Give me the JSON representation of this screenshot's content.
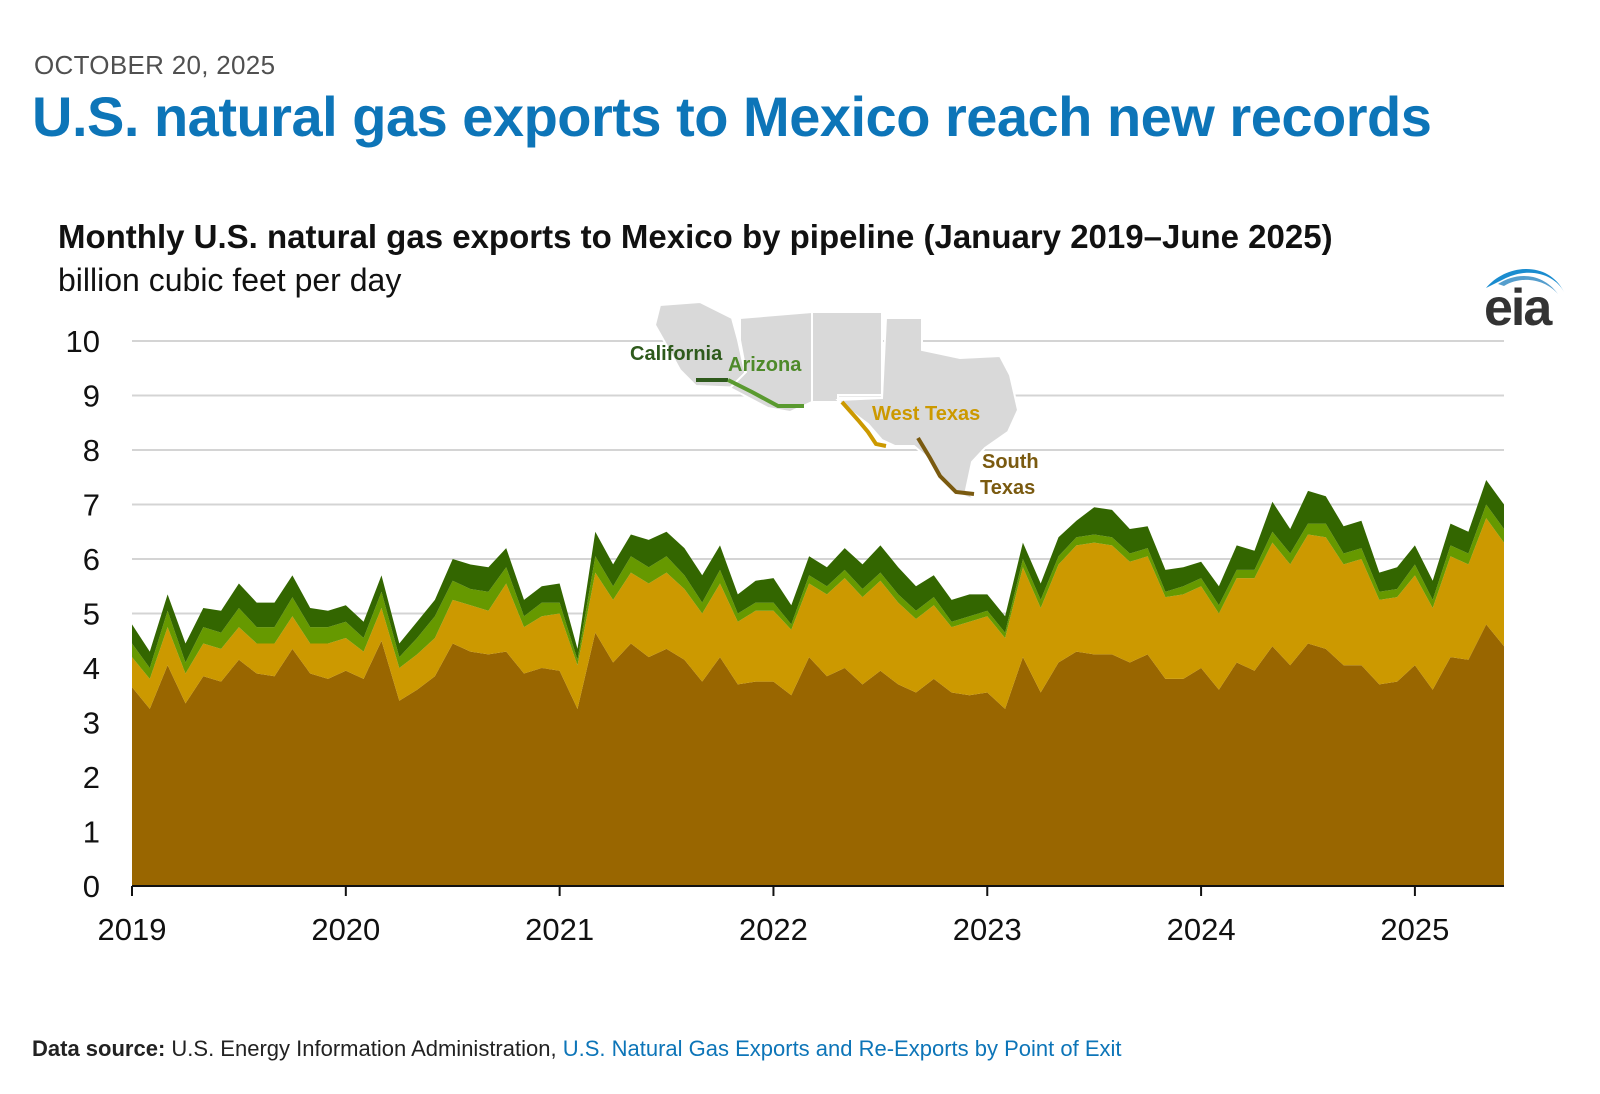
{
  "header": {
    "date": "OCTOBER 20, 2025",
    "title": "U.S. natural gas exports to Mexico reach new records"
  },
  "chart_data": {
    "type": "area",
    "stacked": true,
    "title": "Monthly U.S. natural gas exports to Mexico by pipeline (January 2019–June 2025)",
    "ylabel": "billion cubic feet per day",
    "ylim": [
      0,
      10
    ],
    "yticks": [
      "0",
      "1",
      "2",
      "3",
      "4",
      "5",
      "6",
      "7",
      "8",
      "9",
      "10"
    ],
    "xlim": [
      2019,
      2025.4167
    ],
    "xticks": [
      "2019",
      "2020",
      "2021",
      "2022",
      "2023",
      "2024",
      "2025"
    ],
    "x_start": "January 2019",
    "x_step": "monthly",
    "legend_placement": "inset map, top-center",
    "series": [
      {
        "name": "South Texas",
        "color": "#996600",
        "values": [
          3.65,
          3.25,
          4.05,
          3.35,
          3.85,
          3.75,
          4.15,
          3.9,
          3.85,
          4.35,
          3.9,
          3.8,
          3.95,
          3.8,
          4.5,
          3.4,
          3.6,
          3.85,
          4.45,
          4.3,
          4.25,
          4.3,
          3.9,
          4.0,
          3.95,
          3.25,
          4.65,
          4.1,
          4.45,
          4.2,
          4.35,
          4.15,
          3.75,
          4.2,
          3.7,
          3.75,
          3.75,
          3.5,
          4.2,
          3.85,
          4.0,
          3.7,
          3.95,
          3.7,
          3.55,
          3.8,
          3.55,
          3.5,
          3.55,
          3.25,
          4.2,
          3.55,
          4.1,
          4.3,
          4.25,
          4.25,
          4.1,
          4.25,
          3.8,
          3.8,
          4.0,
          3.6,
          4.1,
          3.95,
          4.4,
          4.05,
          4.45,
          4.35,
          4.05,
          4.05,
          3.7,
          3.75,
          4.05,
          3.6,
          4.2,
          4.15,
          4.8,
          4.4
        ]
      },
      {
        "name": "West Texas",
        "color": "#cc9900",
        "values": [
          0.55,
          0.55,
          0.7,
          0.55,
          0.6,
          0.6,
          0.6,
          0.55,
          0.6,
          0.6,
          0.55,
          0.65,
          0.6,
          0.5,
          0.6,
          0.6,
          0.65,
          0.7,
          0.8,
          0.85,
          0.8,
          1.25,
          0.85,
          0.95,
          1.05,
          0.8,
          1.1,
          1.15,
          1.3,
          1.35,
          1.4,
          1.3,
          1.25,
          1.35,
          1.15,
          1.3,
          1.3,
          1.2,
          1.35,
          1.5,
          1.65,
          1.6,
          1.65,
          1.5,
          1.35,
          1.35,
          1.2,
          1.35,
          1.4,
          1.3,
          1.65,
          1.55,
          1.8,
          1.95,
          2.05,
          2.0,
          1.85,
          1.8,
          1.5,
          1.55,
          1.5,
          1.4,
          1.55,
          1.7,
          1.9,
          1.85,
          2.0,
          2.05,
          1.85,
          1.95,
          1.55,
          1.55,
          1.65,
          1.5,
          1.85,
          1.75,
          1.95,
          1.9
        ]
      },
      {
        "name": "Arizona",
        "color": "#669900",
        "values": [
          0.25,
          0.2,
          0.3,
          0.2,
          0.3,
          0.3,
          0.35,
          0.3,
          0.3,
          0.35,
          0.3,
          0.3,
          0.3,
          0.25,
          0.3,
          0.2,
          0.3,
          0.4,
          0.35,
          0.3,
          0.35,
          0.3,
          0.2,
          0.25,
          0.2,
          0.1,
          0.3,
          0.25,
          0.3,
          0.3,
          0.3,
          0.25,
          0.2,
          0.25,
          0.15,
          0.15,
          0.15,
          0.1,
          0.15,
          0.15,
          0.15,
          0.15,
          0.15,
          0.15,
          0.15,
          0.15,
          0.1,
          0.1,
          0.1,
          0.1,
          0.15,
          0.15,
          0.15,
          0.15,
          0.15,
          0.15,
          0.15,
          0.15,
          0.1,
          0.15,
          0.15,
          0.15,
          0.15,
          0.15,
          0.2,
          0.2,
          0.2,
          0.25,
          0.2,
          0.2,
          0.15,
          0.15,
          0.2,
          0.15,
          0.2,
          0.2,
          0.25,
          0.25
        ]
      },
      {
        "name": "California",
        "color": "#336600",
        "values": [
          0.35,
          0.3,
          0.3,
          0.35,
          0.35,
          0.4,
          0.45,
          0.45,
          0.45,
          0.4,
          0.35,
          0.3,
          0.3,
          0.3,
          0.3,
          0.25,
          0.3,
          0.3,
          0.4,
          0.45,
          0.45,
          0.35,
          0.3,
          0.3,
          0.35,
          0.2,
          0.45,
          0.4,
          0.4,
          0.5,
          0.45,
          0.5,
          0.5,
          0.45,
          0.35,
          0.4,
          0.45,
          0.35,
          0.35,
          0.35,
          0.4,
          0.45,
          0.5,
          0.5,
          0.45,
          0.4,
          0.4,
          0.4,
          0.3,
          0.3,
          0.3,
          0.3,
          0.35,
          0.3,
          0.5,
          0.5,
          0.45,
          0.4,
          0.4,
          0.35,
          0.3,
          0.35,
          0.45,
          0.35,
          0.55,
          0.45,
          0.6,
          0.5,
          0.5,
          0.5,
          0.35,
          0.4,
          0.35,
          0.35,
          0.4,
          0.4,
          0.45,
          0.45
        ]
      }
    ],
    "map_labels": [
      {
        "name": "California",
        "color": "#2e5a1c"
      },
      {
        "name": "Arizona",
        "color": "#4e8a2a"
      },
      {
        "name": "West Texas",
        "color": "#cc9900"
      },
      {
        "name": "South Texas",
        "color": "#7a5a10"
      }
    ]
  },
  "logo": {
    "text": "eia"
  },
  "footer": {
    "label": "Data source:",
    "source": "U.S. Energy Information Administration,",
    "link": "U.S. Natural Gas Exports and Re-Exports by Point of Exit"
  }
}
